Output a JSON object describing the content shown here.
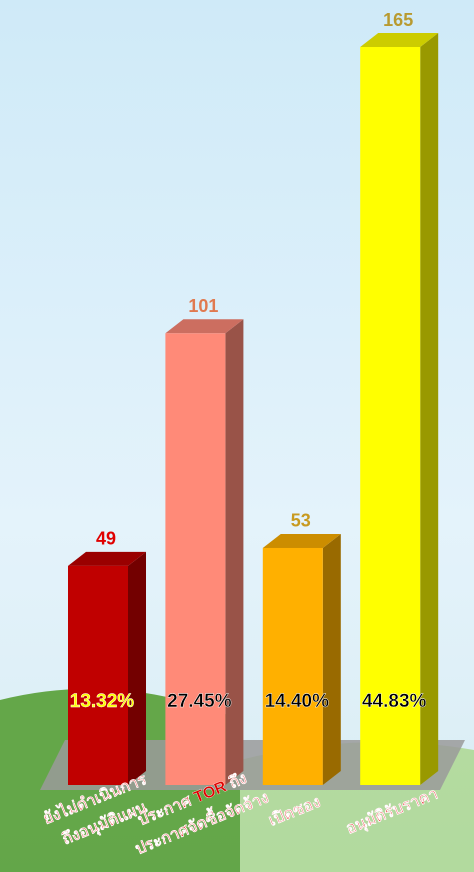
{
  "chart_data": {
    "type": "bar3d",
    "categories": [
      [
        "ยังไม่ดำเนินการ",
        "ถึงอนุมัติแผน"
      ],
      [
        "ประกาศ TOR ถึง",
        "ประกาศจัดซื้อจัดจ้าง"
      ],
      [
        "เปิดซอง"
      ],
      [
        "อนุมัติรับราคา"
      ]
    ],
    "values": [
      49,
      101,
      53,
      165
    ],
    "share_labels": [
      "13.32%",
      "27.45%",
      "14.40%",
      "44.83%"
    ],
    "colors": [
      "#c00000",
      "#ff8a78",
      "#ffb000",
      "#ffff00"
    ],
    "value_label_colors": [
      "#e00000",
      "#e07a50",
      "#c89a20",
      "#b89a30"
    ],
    "share_label_colors": [
      "#ffff00",
      "#000000",
      "#000000",
      "#000000"
    ],
    "category_color": "#e00000",
    "ylim": [
      0,
      165
    ]
  }
}
